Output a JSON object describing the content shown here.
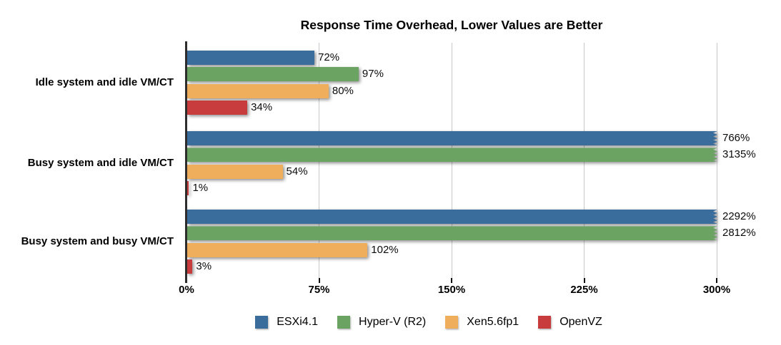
{
  "chart_data": {
    "type": "bar",
    "orientation": "horizontal",
    "title": "Response Time Overhead, Lower Values are Better",
    "categories": [
      "Idle system and idle VM/CT",
      "Busy system and idle VM/CT",
      "Busy system and busy VM/CT"
    ],
    "series": [
      {
        "name": "ESXi4.1",
        "color": "#3A6D9C",
        "values": [
          72,
          766,
          2292
        ]
      },
      {
        "name": "Hyper-V (R2)",
        "color": "#6BA462",
        "values": [
          97,
          3135,
          2812
        ]
      },
      {
        "name": "Xen5.6fp1",
        "color": "#EFAE5B",
        "values": [
          80,
          54,
          102
        ]
      },
      {
        "name": "OpenVZ",
        "color": "#C93C3E",
        "values": [
          34,
          1,
          3
        ]
      }
    ],
    "value_label_suffix": "%",
    "xaxis": {
      "tick_labels": [
        "0%",
        "75%",
        "150%",
        "225%",
        "300%"
      ],
      "tick_values": [
        0,
        75,
        150,
        225,
        300
      ],
      "max": 300
    },
    "clip_over_max": true,
    "clip_marker": "zigzag",
    "grid": true,
    "legend_position": "bottom"
  }
}
